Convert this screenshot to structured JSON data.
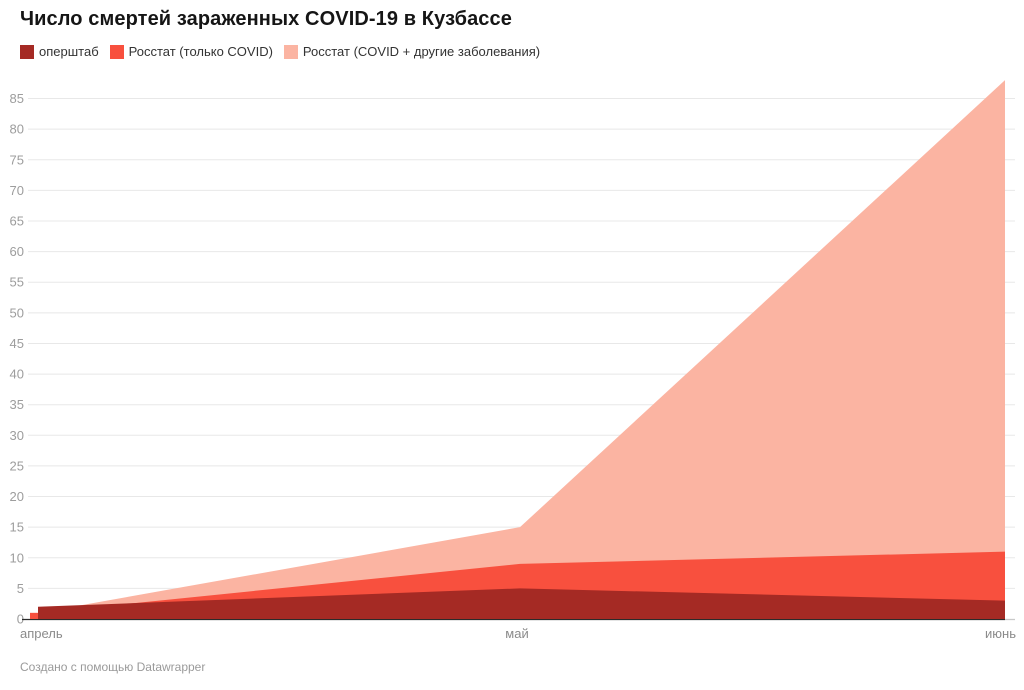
{
  "header": {
    "title": "Число смертей зараженных COVID-19 в Кузбассе"
  },
  "footer": {
    "credit": "Создано с помощью Datawrapper"
  },
  "chart_data": {
    "type": "area",
    "title": "Число смертей зараженных COVID-19 в Кузбассе",
    "categories": [
      "апрель",
      "май",
      "июнь"
    ],
    "series": [
      {
        "name": "оперштаб",
        "color": "#a52a24",
        "values": [
          2,
          5,
          3
        ],
        "edge_start": true
      },
      {
        "name": "Росстат (только COVID)",
        "color": "#f8503e",
        "values": [
          1,
          9,
          11
        ],
        "edge_start": false
      },
      {
        "name": "Росстат (COVID + другие заболевания)",
        "color": "#fbb4a2",
        "values": [
          1,
          15,
          88
        ],
        "edge_start": false
      }
    ],
    "yticks": [
      0,
      5,
      10,
      15,
      20,
      25,
      30,
      35,
      40,
      45,
      50,
      55,
      60,
      65,
      70,
      75,
      80,
      85
    ],
    "ylim": [
      0,
      88
    ],
    "grid": true,
    "legend_position": "top",
    "colors": {
      "gridline": "#e8e8e8",
      "baseline_dark": "#2b2b2b",
      "baseline_light": "#c9c9c9",
      "y_tick_label": "#9d9d9d",
      "x_tick_label": "#8b8b8b"
    }
  }
}
